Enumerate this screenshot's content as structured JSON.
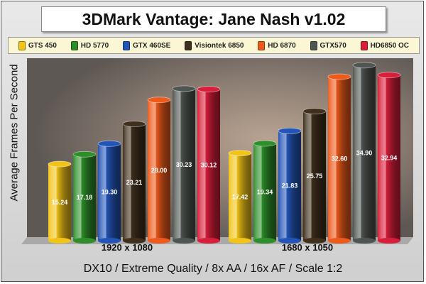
{
  "title": "3DMark Vantage: Jane Nash v1.02",
  "footnote": "DX10 / Extreme Quality / 8x AA / 16x AF / Scale 1:2",
  "chart_data": {
    "type": "bar",
    "title": "3DMark Vantage: Jane Nash v1.02",
    "ylabel": "Average Frames Per Second",
    "xlabel": "",
    "ylim": [
      0,
      36
    ],
    "grid": false,
    "legend_position": "top",
    "categories": [
      "1920 x 1080",
      "1680 x 1050"
    ],
    "series": [
      {
        "name": "GTS 450",
        "color": "#f2c418",
        "values": [
          15.24,
          17.42
        ]
      },
      {
        "name": "HD 5770",
        "color": "#2e8f2a",
        "values": [
          17.18,
          19.34
        ]
      },
      {
        "name": "GTX 460SE",
        "color": "#2355b8",
        "values": [
          19.3,
          21.83
        ]
      },
      {
        "name": "Visiontek 6850",
        "color": "#3f2f1c",
        "values": [
          23.21,
          25.75
        ]
      },
      {
        "name": "HD 6870",
        "color": "#ee5a1c",
        "values": [
          28.0,
          32.6
        ]
      },
      {
        "name": "GTX570",
        "color": "#4f5550",
        "values": [
          30.23,
          34.9
        ]
      },
      {
        "name": "HD6850 OC",
        "color": "#d81e3a",
        "values": [
          30.12,
          32.94
        ]
      }
    ]
  }
}
